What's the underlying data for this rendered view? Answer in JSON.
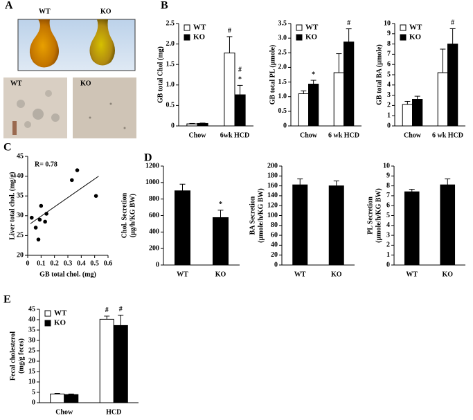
{
  "figure": {
    "panel_labels": [
      "A",
      "B",
      "C",
      "D",
      "E"
    ],
    "photo_labels": [
      "WT",
      "KO"
    ],
    "micrograph_labels": [
      "WT",
      "KO"
    ]
  },
  "chart_data": [
    {
      "type": "bar",
      "ylabel": "GB  total Chol  (mg)",
      "categories": [
        "Chow",
        "6wk HCD"
      ],
      "series": [
        {
          "name": "WT",
          "color": "#ffffff",
          "values": [
            0.05,
            1.78
          ],
          "errors": [
            0.01,
            0.4
          ],
          "annotations": [
            null,
            [
              "#"
            ]
          ]
        },
        {
          "name": "KO",
          "color": "#000000",
          "values": [
            0.06,
            0.76
          ],
          "errors": [
            0.01,
            0.23
          ],
          "annotations": [
            null,
            [
              "#",
              "*"
            ]
          ]
        }
      ],
      "ylim": [
        0,
        2.5
      ],
      "yticks": [
        0,
        0.5,
        {
          "value": 1,
          "label": "1.0"
        },
        1.5,
        {
          "value": 2,
          "label": "2.0"
        },
        2.5
      ]
    },
    {
      "type": "bar",
      "ylabel": "GB total PL (μmole)",
      "categories": [
        "Chow",
        "6 wk HCD"
      ],
      "series": [
        {
          "name": "WT",
          "color": "#ffffff",
          "values": [
            1.1,
            1.82
          ],
          "errors": [
            0.1,
            0.65
          ]
        },
        {
          "name": "KO",
          "color": "#000000",
          "values": [
            1.43,
            2.87
          ],
          "errors": [
            0.13,
            0.45
          ],
          "annotations": [
            [
              "*"
            ],
            [
              "#"
            ]
          ]
        }
      ],
      "ylim": [
        0,
        3.5
      ],
      "yticks": [
        0,
        0.5,
        {
          "value": 1,
          "label": "1.0"
        },
        1.5,
        {
          "value": 2,
          "label": "2.0"
        },
        2.5,
        {
          "value": 3,
          "label": "3.0"
        },
        3.5
      ]
    },
    {
      "type": "bar",
      "ylabel": "GB total BA (μmole)",
      "categories": [
        "Chow",
        "6 wk HCD"
      ],
      "series": [
        {
          "name": "WT",
          "color": "#ffffff",
          "values": [
            2.1,
            5.2
          ],
          "errors": [
            0.3,
            2.3
          ]
        },
        {
          "name": "KO",
          "color": "#000000",
          "values": [
            2.6,
            8.0
          ],
          "errors": [
            0.3,
            1.5
          ],
          "annotations": [
            null,
            [
              "#"
            ]
          ]
        }
      ],
      "ylim": [
        0,
        10
      ],
      "yticks": [
        0,
        1,
        2,
        3,
        4,
        5,
        6,
        7,
        8,
        9,
        10
      ]
    },
    {
      "type": "scatter",
      "xlabel": "GB total chol. (mg)",
      "ylabel": "Liver total chol. (mg/g)",
      "annotation": "R= 0.78",
      "x": [
        0.03,
        0.06,
        0.08,
        0.09,
        0.1,
        0.13,
        0.14,
        0.33,
        0.37,
        0.51
      ],
      "y": [
        29.5,
        27,
        24,
        29,
        32.5,
        28.5,
        30.5,
        39,
        41.5,
        35
      ],
      "trendline": {
        "x": [
          0.02,
          0.53
        ],
        "y": [
          28,
          40
        ]
      },
      "xlim": [
        0,
        0.6
      ],
      "xticks": [
        0,
        0.1,
        0.2,
        0.3,
        0.4,
        0.5,
        0.6
      ],
      "ylim": [
        20,
        45
      ],
      "yticks": [
        20,
        25,
        30,
        35,
        40,
        45
      ]
    },
    {
      "type": "bar",
      "ylabel": [
        "Chol. Secretion",
        "(μg/h/KG BW)"
      ],
      "categories": [
        "WT",
        "KO"
      ],
      "color": "#000000",
      "values": [
        900,
        575
      ],
      "errors": [
        80,
        90
      ],
      "annotations": [
        null,
        [
          "*"
        ]
      ],
      "ylim": [
        0,
        1200
      ],
      "yticks": [
        0,
        200,
        400,
        600,
        800,
        1000,
        1200
      ]
    },
    {
      "type": "bar",
      "ylabel": [
        "BA Secretion",
        "(μmole/h/KG BW)"
      ],
      "categories": [
        "WT",
        "KO"
      ],
      "color": "#000000",
      "values": [
        162,
        160
      ],
      "errors": [
        12,
        10
      ],
      "ylim": [
        0,
        200
      ],
      "yticks": [
        0,
        20,
        40,
        60,
        80,
        100,
        120,
        140,
        160,
        180,
        200
      ]
    },
    {
      "type": "bar",
      "ylabel": [
        "PL Secretion",
        "(μmole/h/KG BW)"
      ],
      "categories": [
        "WT",
        "KO"
      ],
      "color": "#000000",
      "values": [
        7.4,
        8.1
      ],
      "errors": [
        0.25,
        0.6
      ],
      "ylim": [
        0,
        10
      ],
      "yticks": [
        0,
        1,
        2,
        3,
        4,
        5,
        6,
        7,
        8,
        9,
        10
      ]
    },
    {
      "type": "bar",
      "ylabel": [
        "Fecal cholesterol",
        "(mg/g feces)"
      ],
      "categories": [
        "Chow",
        "HCD"
      ],
      "series": [
        {
          "name": "WT",
          "color": "#ffffff",
          "values": [
            4.2,
            40.2
          ],
          "errors": [
            0.3,
            1.5
          ],
          "annotations": [
            null,
            [
              "#"
            ]
          ]
        },
        {
          "name": "KO",
          "color": "#000000",
          "values": [
            3.9,
            37.2
          ],
          "errors": [
            0.3,
            5
          ],
          "annotations": [
            null,
            [
              "#"
            ]
          ]
        }
      ],
      "ylim": [
        0,
        45
      ],
      "yticks": [
        0,
        5,
        10,
        15,
        20,
        25,
        30,
        35,
        40,
        45
      ]
    }
  ]
}
